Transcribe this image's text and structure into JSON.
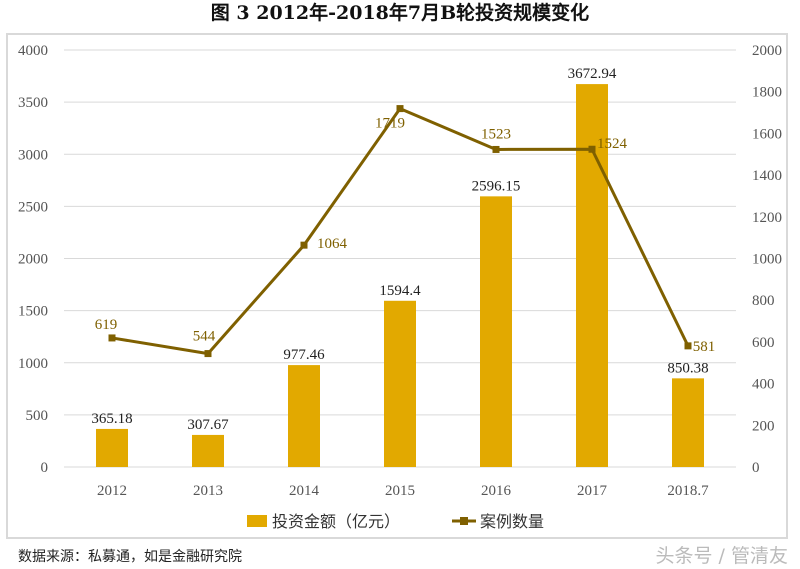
{
  "title": "图 3    2012年-2018年7月B轮投资规模变化",
  "source": "数据来源：私募通，如是金融研究院",
  "watermark": "头条号 / 管清友",
  "chart_data": {
    "type": "bar+line",
    "categories": [
      "2012",
      "2013",
      "2014",
      "2015",
      "2016",
      "2017",
      "2018.7"
    ],
    "series": [
      {
        "name": "投资金额（亿元）",
        "type": "bar",
        "axis": "left",
        "color": "#E2A900",
        "values": [
          365.18,
          307.67,
          977.46,
          1594.4,
          2596.15,
          3672.94,
          850.38
        ],
        "labels": [
          "365.18",
          "307.67",
          "977.46",
          "1594.4",
          "2596.15",
          "3672.94",
          "850.38"
        ]
      },
      {
        "name": "案例数量",
        "type": "line",
        "axis": "right",
        "color": "#7F6000",
        "values": [
          619,
          544,
          1064,
          1719,
          1523,
          1524,
          581
        ],
        "labels": [
          "619",
          "544",
          "1064",
          "1719",
          "1523",
          "1524",
          "581"
        ]
      }
    ],
    "left_axis": {
      "ylim": [
        0,
        4000
      ],
      "ticks": [
        "0",
        "500",
        "1000",
        "1500",
        "2000",
        "2500",
        "3000",
        "3500",
        "4000"
      ]
    },
    "right_axis": {
      "ylim": [
        0,
        2000
      ],
      "ticks": [
        "0",
        "200",
        "400",
        "600",
        "800",
        "1000",
        "1200",
        "1400",
        "1600",
        "1800",
        "2000"
      ]
    },
    "grid": true,
    "legend": "bottom"
  }
}
